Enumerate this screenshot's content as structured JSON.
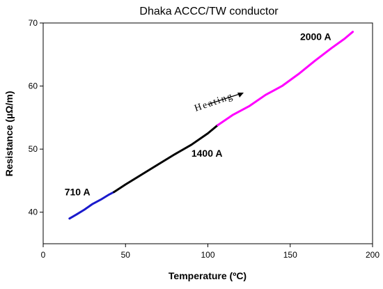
{
  "chart_data": {
    "type": "line",
    "title": "Dhaka ACCC/TW conductor",
    "xlabel": "Temperature (ºC)",
    "ylabel": "Resistance (µΩ/m)",
    "xlim": [
      0,
      200
    ],
    "ylim": [
      35,
      70
    ],
    "x_ticks": [
      0,
      50,
      100,
      150,
      200
    ],
    "y_ticks": [
      40,
      50,
      60,
      70
    ],
    "grid": false,
    "series": [
      {
        "name": "710 A",
        "color": "#1a1acc",
        "x": [
          16,
          20,
          25,
          30,
          35,
          40,
          43
        ],
        "y": [
          39.0,
          39.6,
          40.4,
          41.3,
          42.0,
          42.8,
          43.2
        ]
      },
      {
        "name": "1400 A",
        "color": "#000000",
        "x": [
          43,
          50,
          60,
          70,
          80,
          90,
          100,
          106
        ],
        "y": [
          43.2,
          44.4,
          46.0,
          47.6,
          49.2,
          50.7,
          52.5,
          53.8
        ]
      },
      {
        "name": "2000 A",
        "color": "#ff00ff",
        "x": [
          106,
          115,
          125,
          135,
          145,
          155,
          165,
          175,
          183,
          188
        ],
        "y": [
          53.8,
          55.4,
          56.8,
          58.6,
          60.0,
          61.9,
          64.0,
          66.0,
          67.5,
          68.6
        ]
      }
    ],
    "annotations": [
      {
        "text": "710 A",
        "x": 13,
        "y": 42.7
      },
      {
        "text": "1400 A",
        "x": 90,
        "y": 48.8
      },
      {
        "text": "2000 A",
        "x": 156,
        "y": 67.3
      }
    ],
    "arrow_label": "Heating"
  }
}
